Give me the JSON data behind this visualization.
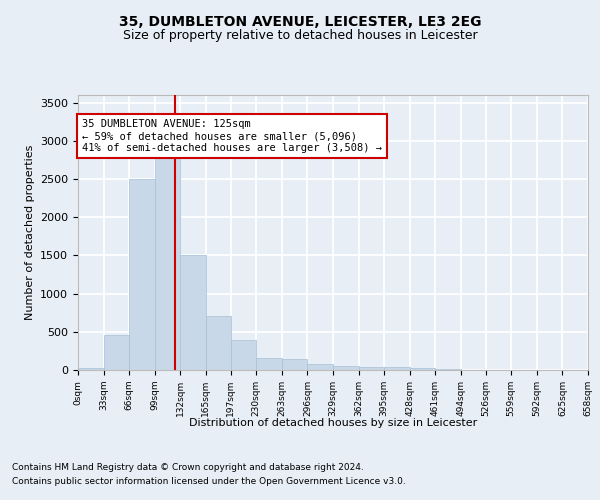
{
  "title_line1": "35, DUMBLETON AVENUE, LEICESTER, LE3 2EG",
  "title_line2": "Size of property relative to detached houses in Leicester",
  "xlabel": "Distribution of detached houses by size in Leicester",
  "ylabel": "Number of detached properties",
  "bar_edges": [
    0,
    33,
    66,
    99,
    132,
    165,
    197,
    230,
    263,
    296,
    329,
    362,
    395,
    428,
    461,
    494,
    526,
    559,
    592,
    625,
    658
  ],
  "bar_heights": [
    20,
    460,
    2500,
    2820,
    1500,
    710,
    390,
    155,
    150,
    75,
    55,
    40,
    45,
    20,
    10,
    5,
    5,
    5,
    5,
    5
  ],
  "bar_color": "#c8d8e8",
  "bar_edge_color": "#a8c0d8",
  "property_size": 125,
  "vline_color": "#cc0000",
  "annotation_text": "35 DUMBLETON AVENUE: 125sqm\n← 59% of detached houses are smaller (5,096)\n41% of semi-detached houses are larger (3,508) →",
  "annotation_box_color": "#ffffff",
  "annotation_box_edge_color": "#cc0000",
  "ylim": [
    0,
    3600
  ],
  "yticks": [
    0,
    500,
    1000,
    1500,
    2000,
    2500,
    3000,
    3500
  ],
  "tick_labels": [
    "0sqm",
    "33sqm",
    "66sqm",
    "99sqm",
    "132sqm",
    "165sqm",
    "197sqm",
    "230sqm",
    "263sqm",
    "296sqm",
    "329sqm",
    "362sqm",
    "395sqm",
    "428sqm",
    "461sqm",
    "494sqm",
    "526sqm",
    "559sqm",
    "592sqm",
    "625sqm",
    "658sqm"
  ],
  "footer_line1": "Contains HM Land Registry data © Crown copyright and database right 2024.",
  "footer_line2": "Contains public sector information licensed under the Open Government Licence v3.0.",
  "bg_color": "#e8eef5",
  "plot_bg_color": "#e8eef5",
  "grid_color": "#ffffff",
  "title_fontsize": 10,
  "subtitle_fontsize": 9,
  "footer_fontsize": 6.5,
  "ylabel_fontsize": 8,
  "xlabel_fontsize": 8,
  "ytick_fontsize": 8,
  "xtick_fontsize": 6.5
}
